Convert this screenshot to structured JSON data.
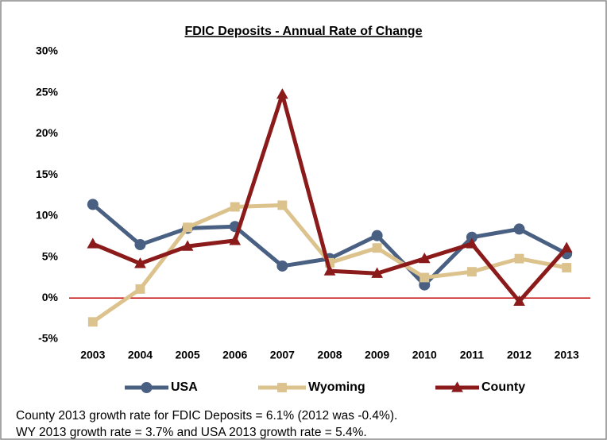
{
  "chart_data": {
    "type": "line",
    "title": "FDIC Deposits - Annual Rate of Change",
    "categories": [
      "2003",
      "2004",
      "2005",
      "2006",
      "2007",
      "2008",
      "2009",
      "2010",
      "2011",
      "2012",
      "2013"
    ],
    "series": [
      {
        "name": "USA",
        "color": "#4a6082",
        "marker": "circle",
        "values": [
          11.4,
          6.5,
          8.5,
          8.7,
          3.9,
          4.8,
          7.6,
          1.6,
          7.4,
          8.4,
          5.4
        ]
      },
      {
        "name": "Wyoming",
        "color": "#dcc38e",
        "marker": "square",
        "values": [
          -2.9,
          1.1,
          8.6,
          11.1,
          11.3,
          4.3,
          6.1,
          2.5,
          3.2,
          4.8,
          3.7
        ]
      },
      {
        "name": "County",
        "color": "#8b1a1a",
        "marker": "triangle",
        "values": [
          6.6,
          4.2,
          6.3,
          7.0,
          24.8,
          3.3,
          3.0,
          4.8,
          6.6,
          -0.4,
          6.1
        ]
      }
    ],
    "ylim": [
      -5,
      30
    ],
    "yticks": [
      {
        "value": -5,
        "label": "-5%"
      },
      {
        "value": 0,
        "label": "0%"
      },
      {
        "value": 5,
        "label": "5%"
      },
      {
        "value": 10,
        "label": "10%"
      },
      {
        "value": 15,
        "label": "15%"
      },
      {
        "value": 20,
        "label": "20%"
      },
      {
        "value": 25,
        "label": "25%"
      },
      {
        "value": 30,
        "label": "30%"
      }
    ],
    "grid": false,
    "legend": "bottom",
    "footnote": [
      "County 2013 growth rate for FDIC Deposits = 6.1% (2012 was -0.4%).",
      "WY 2013 growth rate = 3.7% and USA 2013 growth rate = 5.4%."
    ]
  }
}
